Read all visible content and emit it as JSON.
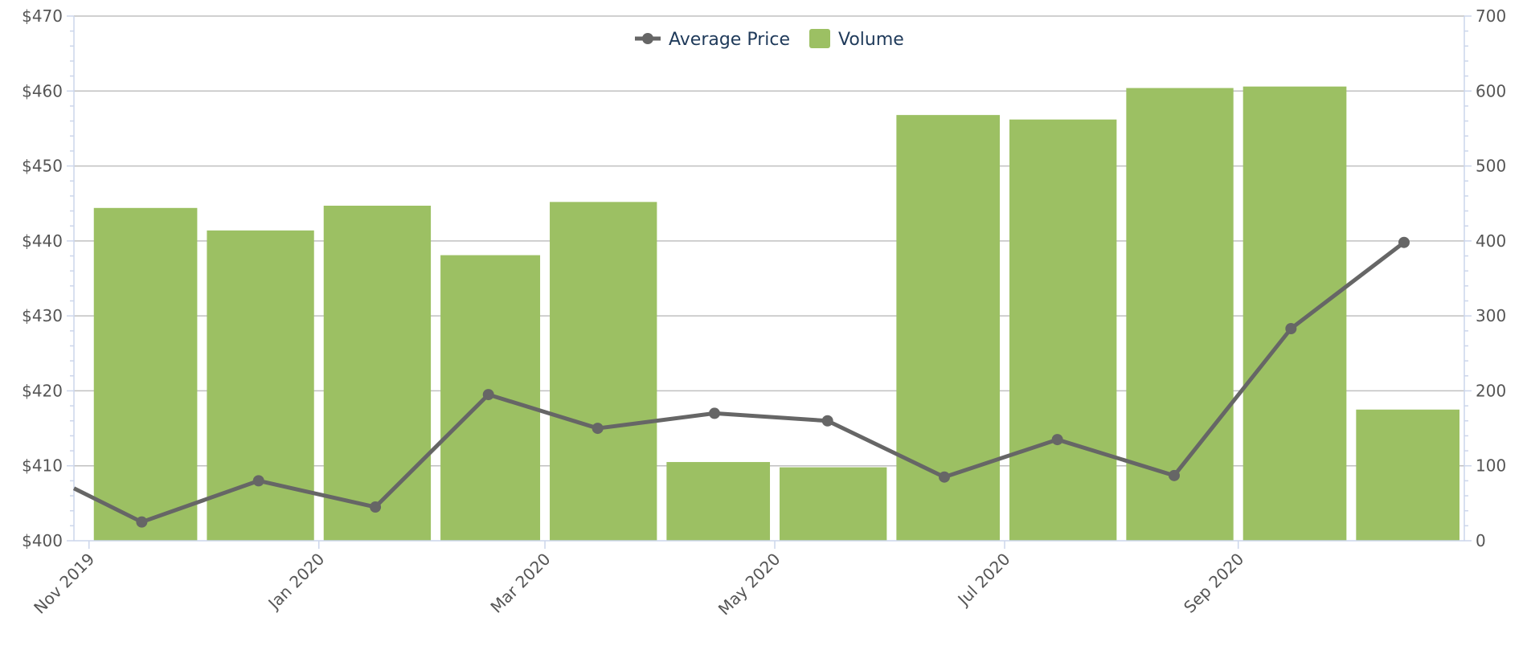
{
  "chart_data": {
    "type": "bar",
    "title": "",
    "xlabel": "",
    "ylabel_left": "",
    "ylabel_right": "",
    "months": [
      "Nov 2019",
      "Dec 2019",
      "Jan 2020",
      "Feb 2020",
      "Mar 2020",
      "Apr 2020",
      "May 2020",
      "Jun 2020",
      "Jul 2020",
      "Aug 2020",
      "Sep 2020",
      "Oct 2020"
    ],
    "x_tick_labels": [
      "Nov 2019",
      "Jan 2020",
      "Mar 2020",
      "May 2020",
      "Jul 2020",
      "Sep 2020"
    ],
    "x_range": [
      "2019-10-28",
      "2020-10-31"
    ],
    "series": [
      {
        "name": "Volume",
        "type": "bar",
        "axis": "right",
        "color": "#9cc063",
        "values": [
          444,
          414,
          447,
          381,
          452,
          105,
          98,
          568,
          562,
          604,
          606,
          175
        ]
      },
      {
        "name": "Average Price",
        "type": "line",
        "axis": "left",
        "color": "#666666",
        "x": [
          "2019-10-28",
          "2019-11-15",
          "2019-12-16",
          "2020-01-16",
          "2020-02-15",
          "2020-03-15",
          "2020-04-15",
          "2020-05-15",
          "2020-06-15",
          "2020-07-15",
          "2020-08-15",
          "2020-09-15",
          "2020-10-15"
        ],
        "values": [
          407,
          402.5,
          408,
          404.5,
          419.5,
          415,
          417,
          416,
          408.5,
          413.5,
          408.7,
          428.3,
          439.8
        ]
      }
    ],
    "y_left": {
      "min": 400,
      "max": 470,
      "tick_step": 10,
      "minor_step": 2,
      "tick_labels": [
        "$400",
        "$410",
        "$420",
        "$430",
        "$440",
        "$450",
        "$460",
        "$470"
      ]
    },
    "y_right": {
      "min": 0,
      "max": 700,
      "tick_step": 100,
      "minor_step": 20,
      "tick_labels": [
        "0",
        "100",
        "200",
        "300",
        "400",
        "500",
        "600",
        "700"
      ]
    },
    "grid": true,
    "legend": {
      "position": "top-center",
      "entries": [
        "Average Price",
        "Volume"
      ]
    },
    "colors": {
      "bar": "#9cc063",
      "line": "#666666",
      "grid": "#c0c0c0",
      "axis": "#ccd6eb",
      "tick_text": "#555555",
      "legend_text": "#1f3a5a"
    }
  }
}
